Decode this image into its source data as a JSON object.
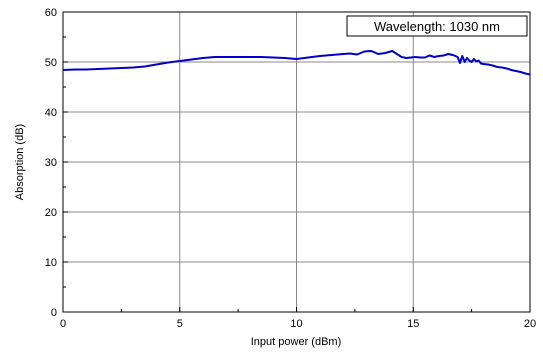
{
  "chart_data": {
    "type": "line",
    "xlabel": "Input power (dBm)",
    "ylabel": "Absorption (dB)",
    "xlim": [
      0,
      20
    ],
    "ylim": [
      0,
      60
    ],
    "xticks": [
      0,
      5,
      10,
      15,
      20
    ],
    "yticks": [
      0,
      10,
      20,
      30,
      40,
      50,
      60
    ],
    "grid": true,
    "annotation": "Wavelength: 1030 nm",
    "line_color": "#0000cc",
    "series": [
      {
        "x": [
          0,
          0.5,
          1,
          1.5,
          2,
          2.5,
          3,
          3.5,
          4,
          4.5,
          5,
          5.5,
          6,
          6.5,
          7,
          7.5,
          8,
          8.5,
          9,
          9.5,
          10,
          10.5,
          11,
          11.5,
          12,
          12.3,
          12.6,
          12.9,
          13.2,
          13.5,
          13.8,
          14.1,
          14.3,
          14.5,
          14.7,
          14.9,
          15.1,
          15.3,
          15.5,
          15.7,
          15.9,
          16.1,
          16.3,
          16.5,
          16.7,
          16.9,
          17.0,
          17.1,
          17.2,
          17.3,
          17.4,
          17.5,
          17.6,
          17.7,
          17.8,
          17.9,
          18.0,
          18.2,
          18.4,
          18.6,
          18.8,
          19.0,
          19.2,
          19.4,
          19.6,
          19.8,
          20.0
        ],
        "y": [
          48.4,
          48.5,
          48.5,
          48.6,
          48.7,
          48.8,
          48.9,
          49.1,
          49.5,
          49.9,
          50.2,
          50.5,
          50.8,
          51.0,
          51.0,
          51.0,
          51.0,
          51.0,
          50.9,
          50.8,
          50.6,
          50.9,
          51.2,
          51.4,
          51.6,
          51.7,
          51.5,
          52.1,
          52.2,
          51.6,
          51.8,
          52.2,
          51.6,
          51.0,
          50.8,
          50.9,
          51.0,
          50.9,
          50.9,
          51.3,
          51.0,
          51.2,
          51.3,
          51.6,
          51.4,
          51.0,
          49.8,
          51.2,
          50.0,
          50.8,
          50.3,
          50.0,
          50.6,
          50.1,
          50.3,
          49.7,
          49.6,
          49.5,
          49.3,
          49.0,
          48.9,
          48.7,
          48.4,
          48.2,
          48.0,
          47.7,
          47.5
        ]
      }
    ]
  }
}
